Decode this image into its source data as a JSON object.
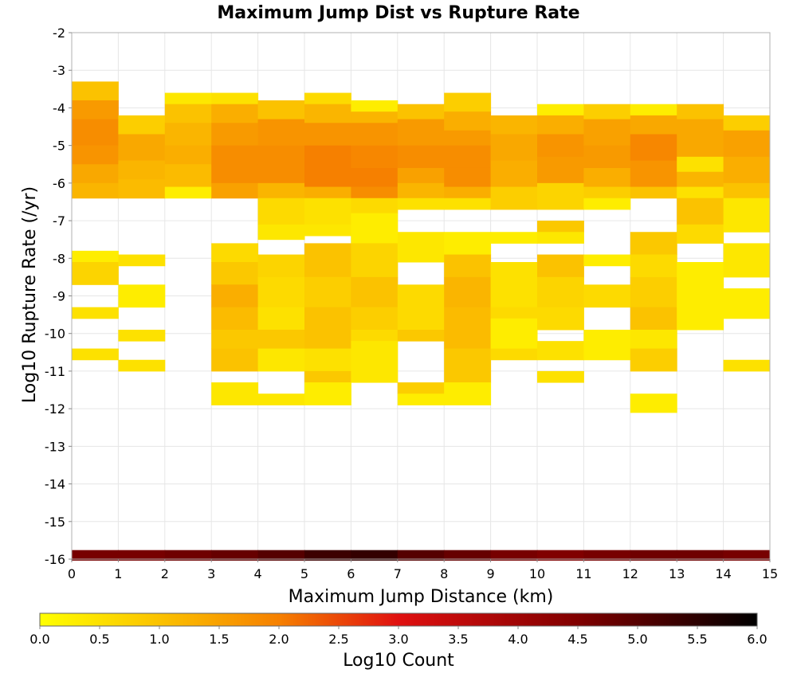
{
  "chart_data": {
    "type": "heatmap",
    "title": "Maximum Jump Dist vs Rupture Rate",
    "xlabel": "Maximum Jump Distance (km)",
    "ylabel": "Log10 Rupture Rate (/yr)",
    "xlim": [
      0,
      15
    ],
    "ylim": [
      -16,
      -2
    ],
    "x_ticks": [
      "0",
      "1",
      "2",
      "3",
      "4",
      "5",
      "6",
      "7",
      "8",
      "9",
      "10",
      "11",
      "12",
      "13",
      "14",
      "15"
    ],
    "y_ticks": [
      "-2",
      "-3",
      "-4",
      "-5",
      "-6",
      "-7",
      "-8",
      "-9",
      "-10",
      "-11",
      "-12",
      "-13",
      "-14",
      "-15",
      "-16"
    ],
    "grid": true,
    "x_bin_width": 1,
    "y_bin_height": 0.28,
    "colorbar": {
      "label": "Log10 Count",
      "range": [
        0,
        6
      ],
      "ticks": [
        "0.0",
        "0.5",
        "1.0",
        "1.5",
        "2.0",
        "2.5",
        "3.0",
        "3.5",
        "4.0",
        "4.5",
        "5.0",
        "5.5",
        "6.0"
      ],
      "stops": [
        {
          "v": 0.0,
          "color": "#ffff00"
        },
        {
          "v": 1.0,
          "color": "#fbc200"
        },
        {
          "v": 2.0,
          "color": "#f68000"
        },
        {
          "v": 3.0,
          "color": "#e01010"
        },
        {
          "v": 4.5,
          "color": "#800000"
        },
        {
          "v": 6.0,
          "color": "#000000"
        }
      ]
    },
    "bottom_row": {
      "y": -15.9,
      "values": [
        4.6,
        4.6,
        4.7,
        4.8,
        5.0,
        5.3,
        5.4,
        5.0,
        4.8,
        4.6,
        4.5,
        4.6,
        4.7,
        4.7,
        4.6
      ]
    },
    "columns": [
      {
        "x": 0,
        "cells": [
          [
            -3.3,
            -3.8,
            1.0
          ],
          [
            -3.8,
            -4.3,
            1.6
          ],
          [
            -4.3,
            -5.0,
            1.8
          ],
          [
            -5.0,
            -5.5,
            1.7
          ],
          [
            -5.5,
            -6.0,
            1.4
          ],
          [
            -6.0,
            -6.4,
            1.2
          ],
          [
            -7.8,
            -8.1,
            0.3
          ],
          [
            -8.1,
            -8.7,
            0.7
          ],
          [
            -9.3,
            -9.6,
            0.5
          ],
          [
            -10.4,
            -10.7,
            0.5
          ]
        ]
      },
      {
        "x": 1,
        "cells": [
          [
            -4.2,
            -4.7,
            0.8
          ],
          [
            -4.7,
            -5.4,
            1.4
          ],
          [
            -5.4,
            -5.9,
            1.2
          ],
          [
            -5.9,
            -6.4,
            1.1
          ],
          [
            -7.9,
            -8.2,
            0.5
          ],
          [
            -8.7,
            -9.3,
            0.3
          ],
          [
            -9.9,
            -10.2,
            0.5
          ],
          [
            -10.7,
            -11.0,
            0.5
          ]
        ]
      },
      {
        "x": 2,
        "cells": [
          [
            -3.6,
            -3.9,
            0.4
          ],
          [
            -3.9,
            -4.4,
            1.0
          ],
          [
            -4.4,
            -5.0,
            1.2
          ],
          [
            -5.0,
            -5.5,
            1.3
          ],
          [
            -5.5,
            -6.1,
            1.1
          ],
          [
            -6.1,
            -6.4,
            0.3
          ]
        ]
      },
      {
        "x": 3,
        "cells": [
          [
            -3.6,
            -3.9,
            0.5
          ],
          [
            -3.9,
            -4.4,
            1.3
          ],
          [
            -4.4,
            -5.0,
            1.6
          ],
          [
            -5.0,
            -5.5,
            1.8
          ],
          [
            -5.5,
            -6.0,
            1.8
          ],
          [
            -6.0,
            -6.4,
            1.5
          ],
          [
            -7.6,
            -8.1,
            0.6
          ],
          [
            -8.1,
            -8.7,
            0.9
          ],
          [
            -8.7,
            -9.3,
            1.3
          ],
          [
            -9.3,
            -9.9,
            1.1
          ],
          [
            -9.9,
            -10.4,
            0.9
          ],
          [
            -10.4,
            -11.0,
            1.0
          ],
          [
            -11.3,
            -11.9,
            0.4
          ]
        ]
      },
      {
        "x": 4,
        "cells": [
          [
            -3.8,
            -4.3,
            1.0
          ],
          [
            -4.3,
            -5.0,
            1.7
          ],
          [
            -5.0,
            -5.5,
            1.8
          ],
          [
            -5.5,
            -6.0,
            1.8
          ],
          [
            -6.0,
            -6.4,
            1.2
          ],
          [
            -6.4,
            -7.1,
            0.6
          ],
          [
            -7.1,
            -7.5,
            0.4
          ],
          [
            -7.9,
            -8.5,
            0.7
          ],
          [
            -8.5,
            -9.3,
            0.6
          ],
          [
            -9.3,
            -9.9,
            0.5
          ],
          [
            -9.9,
            -10.4,
            0.9
          ],
          [
            -10.4,
            -11.0,
            0.4
          ],
          [
            -11.6,
            -11.9,
            0.4
          ]
        ]
      },
      {
        "x": 5,
        "cells": [
          [
            -3.6,
            -3.9,
            0.6
          ],
          [
            -3.9,
            -4.4,
            1.2
          ],
          [
            -4.4,
            -5.0,
            1.7
          ],
          [
            -5.0,
            -5.6,
            2.0
          ],
          [
            -5.6,
            -6.1,
            2.0
          ],
          [
            -6.1,
            -6.4,
            1.3
          ],
          [
            -6.4,
            -7.1,
            0.5
          ],
          [
            -7.1,
            -7.4,
            0.4
          ],
          [
            -7.6,
            -8.5,
            1.0
          ],
          [
            -8.5,
            -9.3,
            0.8
          ],
          [
            -9.3,
            -10.4,
            1.0
          ],
          [
            -10.4,
            -11.0,
            0.5
          ],
          [
            -11.0,
            -11.3,
            0.9
          ],
          [
            -11.3,
            -11.9,
            0.3
          ]
        ]
      },
      {
        "x": 6,
        "cells": [
          [
            -3.8,
            -4.1,
            0.3
          ],
          [
            -4.1,
            -4.4,
            1.2
          ],
          [
            -4.4,
            -5.0,
            1.7
          ],
          [
            -5.0,
            -5.6,
            1.9
          ],
          [
            -5.6,
            -6.1,
            2.0
          ],
          [
            -6.1,
            -6.4,
            1.8
          ],
          [
            -6.4,
            -6.8,
            0.6
          ],
          [
            -6.8,
            -7.6,
            0.3
          ],
          [
            -7.6,
            -8.5,
            0.7
          ],
          [
            -8.5,
            -9.3,
            1.0
          ],
          [
            -9.3,
            -9.9,
            0.8
          ],
          [
            -9.9,
            -10.2,
            0.6
          ],
          [
            -10.2,
            -11.3,
            0.4
          ]
        ]
      },
      {
        "x": 7,
        "cells": [
          [
            -3.9,
            -4.3,
            1.0
          ],
          [
            -4.3,
            -5.0,
            1.6
          ],
          [
            -5.0,
            -5.6,
            1.8
          ],
          [
            -5.6,
            -6.0,
            1.5
          ],
          [
            -6.0,
            -6.4,
            1.2
          ],
          [
            -6.4,
            -6.7,
            0.5
          ],
          [
            -7.3,
            -8.1,
            0.4
          ],
          [
            -8.7,
            -9.9,
            0.6
          ],
          [
            -9.9,
            -10.2,
            0.9
          ],
          [
            -11.3,
            -11.6,
            0.8
          ],
          [
            -11.6,
            -11.9,
            0.3
          ]
        ]
      },
      {
        "x": 8,
        "cells": [
          [
            -3.6,
            -4.1,
            0.8
          ],
          [
            -4.1,
            -4.6,
            1.3
          ],
          [
            -4.6,
            -5.0,
            1.6
          ],
          [
            -5.0,
            -5.6,
            1.8
          ],
          [
            -5.6,
            -6.1,
            1.8
          ],
          [
            -6.1,
            -6.4,
            1.3
          ],
          [
            -6.4,
            -6.7,
            0.5
          ],
          [
            -7.3,
            -7.9,
            0.3
          ],
          [
            -7.9,
            -8.5,
            1.0
          ],
          [
            -8.5,
            -9.3,
            1.2
          ],
          [
            -9.3,
            -10.4,
            1.1
          ],
          [
            -10.4,
            -11.3,
            0.9
          ],
          [
            -11.3,
            -11.9,
            0.3
          ]
        ]
      },
      {
        "x": 9,
        "cells": [
          [
            -4.2,
            -4.7,
            1.2
          ],
          [
            -4.7,
            -5.4,
            1.4
          ],
          [
            -5.4,
            -6.1,
            1.3
          ],
          [
            -6.1,
            -6.7,
            0.8
          ],
          [
            -7.3,
            -7.6,
            0.3
          ],
          [
            -8.1,
            -9.3,
            0.5
          ],
          [
            -9.3,
            -9.6,
            0.6
          ],
          [
            -9.6,
            -10.4,
            0.3
          ],
          [
            -10.4,
            -10.7,
            0.6
          ]
        ]
      },
      {
        "x": 10,
        "cells": [
          [
            -3.9,
            -4.2,
            0.3
          ],
          [
            -4.2,
            -4.7,
            1.3
          ],
          [
            -4.7,
            -5.3,
            1.7
          ],
          [
            -5.3,
            -6.0,
            1.6
          ],
          [
            -6.0,
            -6.7,
            0.7
          ],
          [
            -7.0,
            -7.3,
            0.9
          ],
          [
            -7.3,
            -7.6,
            0.4
          ],
          [
            -7.9,
            -8.5,
            1.0
          ],
          [
            -8.5,
            -9.3,
            0.7
          ],
          [
            -9.3,
            -9.9,
            0.6
          ],
          [
            -10.2,
            -10.7,
            0.5
          ],
          [
            -11.0,
            -11.3,
            0.5
          ]
        ]
      },
      {
        "x": 11,
        "cells": [
          [
            -3.9,
            -4.3,
            0.8
          ],
          [
            -4.3,
            -5.0,
            1.5
          ],
          [
            -5.0,
            -5.6,
            1.6
          ],
          [
            -5.6,
            -6.1,
            1.3
          ],
          [
            -6.1,
            -6.4,
            0.8
          ],
          [
            -6.4,
            -6.7,
            0.3
          ],
          [
            -7.9,
            -8.2,
            0.3
          ],
          [
            -8.7,
            -9.3,
            0.6
          ],
          [
            -9.9,
            -10.7,
            0.3
          ]
        ]
      },
      {
        "x": 12,
        "cells": [
          [
            -3.9,
            -4.2,
            0.3
          ],
          [
            -4.2,
            -4.7,
            1.4
          ],
          [
            -4.7,
            -5.4,
            1.9
          ],
          [
            -5.4,
            -6.1,
            1.7
          ],
          [
            -6.1,
            -6.4,
            1.0
          ],
          [
            -7.3,
            -7.9,
            0.9
          ],
          [
            -7.9,
            -8.5,
            0.6
          ],
          [
            -8.5,
            -9.3,
            0.8
          ],
          [
            -9.3,
            -9.9,
            1.0
          ],
          [
            -9.9,
            -10.4,
            0.4
          ],
          [
            -10.4,
            -11.0,
            0.8
          ],
          [
            -11.6,
            -12.1,
            0.3
          ]
        ]
      },
      {
        "x": 13,
        "cells": [
          [
            -3.9,
            -4.3,
            1.0
          ],
          [
            -4.3,
            -5.3,
            1.4
          ],
          [
            -5.3,
            -5.7,
            0.5
          ],
          [
            -5.7,
            -6.1,
            1.2
          ],
          [
            -6.1,
            -6.4,
            0.5
          ],
          [
            -6.4,
            -7.1,
            1.0
          ],
          [
            -7.1,
            -7.6,
            0.6
          ],
          [
            -8.1,
            -8.7,
            0.3
          ],
          [
            -8.7,
            -9.3,
            0.3
          ],
          [
            -9.3,
            -9.9,
            0.3
          ]
        ]
      },
      {
        "x": 14,
        "cells": [
          [
            -4.2,
            -4.6,
            0.8
          ],
          [
            -4.6,
            -5.3,
            1.5
          ],
          [
            -5.3,
            -6.0,
            1.3
          ],
          [
            -6.0,
            -6.4,
            1.0
          ],
          [
            -6.4,
            -7.3,
            0.4
          ],
          [
            -7.6,
            -8.5,
            0.4
          ],
          [
            -8.8,
            -9.6,
            0.3
          ],
          [
            -10.7,
            -11.0,
            0.5
          ]
        ]
      }
    ]
  }
}
